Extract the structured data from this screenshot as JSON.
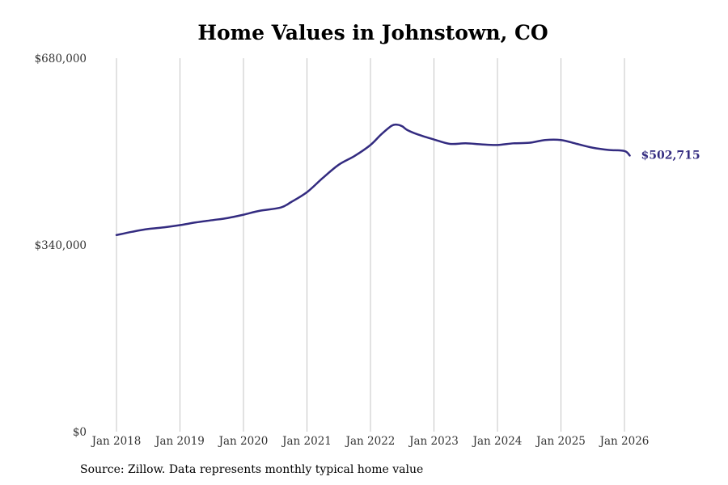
{
  "source_note": "Source: Zillow. Data represents monthly typical home value",
  "colors": {
    "line": "#332b80",
    "grid": "#c4c4c4",
    "text": "#333333"
  },
  "chart_data": {
    "type": "line",
    "title": "Home Values in Johnstown, CO",
    "xlabel": "",
    "ylabel": "",
    "ylim": [
      0,
      680000
    ],
    "y_ticks": [
      0,
      340000,
      680000
    ],
    "y_tick_labels": [
      "$0",
      "$340,000",
      "$680,000"
    ],
    "x_ticks": [
      "2018-01",
      "2019-01",
      "2020-01",
      "2021-01",
      "2022-01",
      "2023-01",
      "2024-01",
      "2025-01",
      "2026-01"
    ],
    "x_tick_labels": [
      "Jan 2018",
      "Jan 2019",
      "Jan 2020",
      "Jan 2021",
      "Jan 2022",
      "Jan 2023",
      "Jan 2024",
      "Jan 2025",
      "Jan 2026"
    ],
    "grid": "vertical",
    "end_label": "$502,715",
    "series": [
      {
        "x": [
          "2018-01",
          "2018-04",
          "2018-07",
          "2018-10",
          "2019-01",
          "2019-04",
          "2019-07",
          "2019-10",
          "2020-01",
          "2020-04",
          "2020-08",
          "2020-10",
          "2021-01",
          "2021-04",
          "2021-07",
          "2021-10",
          "2022-01",
          "2022-03",
          "2022-05",
          "2022-06",
          "2022-07",
          "2022-08",
          "2022-10",
          "2023-01",
          "2023-04",
          "2023-07",
          "2023-10",
          "2024-01",
          "2024-04",
          "2024-07",
          "2024-10",
          "2025-01",
          "2025-04",
          "2025-07",
          "2025-10",
          "2026-01",
          "2026-02"
        ],
        "values": [
          358000,
          364000,
          369000,
          372000,
          376000,
          381000,
          385000,
          389000,
          395000,
          402000,
          408000,
          418000,
          436000,
          462000,
          486000,
          502000,
          522000,
          541000,
          557000,
          559000,
          556000,
          549000,
          541000,
          532000,
          524000,
          525000,
          523000,
          522000,
          525000,
          526000,
          531000,
          531000,
          524000,
          517000,
          513000,
          511000,
          502715
        ]
      }
    ]
  }
}
